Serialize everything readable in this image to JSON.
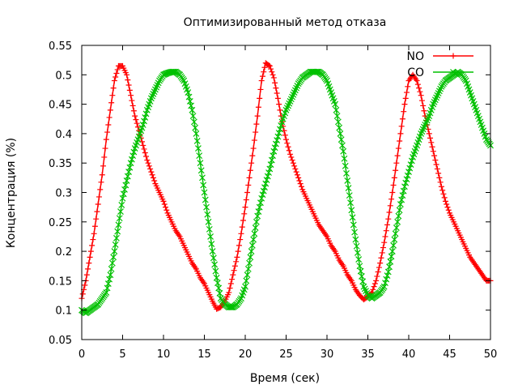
{
  "chart_data": {
    "type": "line",
    "title": "Оптимизированный метод отказа",
    "xlabel": "Время (сек)",
    "ylabel": "Концентрация (%)",
    "xlim": [
      0,
      50
    ],
    "ylim": [
      0.05,
      0.55
    ],
    "x_ticks": [
      0,
      5,
      10,
      15,
      20,
      25,
      30,
      35,
      40,
      45,
      50
    ],
    "y_ticks": [
      0.05,
      0.1,
      0.15,
      0.2,
      0.25,
      0.3,
      0.35,
      0.4,
      0.45,
      0.5,
      0.55
    ],
    "x_tick_labels": [
      "0",
      "5",
      "10",
      "15",
      "20",
      "25",
      "30",
      "35",
      "40",
      "45",
      "50"
    ],
    "y_tick_labels": [
      "0.05",
      "0.1",
      "0.15",
      "0.2",
      "0.25",
      "0.3",
      "0.35",
      "0.4",
      "0.45",
      "0.5",
      "0.55"
    ],
    "grid": false,
    "legend_position": "top-right",
    "series": [
      {
        "name": "NO",
        "color": "#ff0000",
        "marker": "plus",
        "x": [
          0,
          0.5,
          1,
          1.5,
          2,
          2.5,
          3,
          3.5,
          4,
          4.5,
          5,
          5.5,
          6,
          6.5,
          7,
          7.5,
          8,
          8.5,
          9,
          9.5,
          10,
          10.5,
          11,
          11.5,
          12,
          12.5,
          13,
          13.5,
          14,
          14.5,
          15,
          15.5,
          16,
          16.5,
          17,
          17.5,
          18,
          18.5,
          19,
          19.5,
          20,
          20.5,
          21,
          21.5,
          22,
          22.5,
          23,
          23.5,
          24,
          24.5,
          25,
          25.5,
          26,
          26.5,
          27,
          27.5,
          28,
          28.5,
          29,
          29.5,
          30,
          30.5,
          31,
          31.5,
          32,
          32.5,
          33,
          33.5,
          34,
          34.5,
          35,
          35.5,
          36,
          36.5,
          37,
          37.5,
          38,
          38.5,
          39,
          39.5,
          40,
          40.5,
          41,
          41.5,
          42,
          42.5,
          43,
          43.5,
          44,
          44.5,
          45,
          45.5,
          46,
          46.5,
          47,
          47.5,
          48,
          48.5,
          49,
          49.5,
          50
        ],
        "values": [
          0.12,
          0.15,
          0.19,
          0.23,
          0.28,
          0.33,
          0.39,
          0.44,
          0.49,
          0.515,
          0.515,
          0.5,
          0.465,
          0.43,
          0.405,
          0.38,
          0.355,
          0.335,
          0.315,
          0.3,
          0.285,
          0.265,
          0.25,
          0.235,
          0.225,
          0.21,
          0.195,
          0.18,
          0.17,
          0.155,
          0.145,
          0.13,
          0.115,
          0.102,
          0.105,
          0.115,
          0.13,
          0.16,
          0.19,
          0.23,
          0.275,
          0.325,
          0.375,
          0.43,
          0.49,
          0.52,
          0.515,
          0.495,
          0.46,
          0.42,
          0.39,
          0.365,
          0.345,
          0.325,
          0.305,
          0.29,
          0.275,
          0.26,
          0.245,
          0.235,
          0.225,
          0.21,
          0.2,
          0.185,
          0.175,
          0.16,
          0.15,
          0.135,
          0.125,
          0.118,
          0.123,
          0.13,
          0.15,
          0.18,
          0.215,
          0.255,
          0.3,
          0.35,
          0.4,
          0.45,
          0.49,
          0.5,
          0.49,
          0.465,
          0.43,
          0.4,
          0.37,
          0.34,
          0.31,
          0.285,
          0.265,
          0.25,
          0.235,
          0.22,
          0.205,
          0.19,
          0.18,
          0.17,
          0.16,
          0.15,
          0.15
        ]
      },
      {
        "name": "CO",
        "color": "#00c000",
        "marker": "cross",
        "x": [
          0,
          0.5,
          1,
          1.5,
          2,
          2.5,
          3,
          3.5,
          4,
          4.5,
          5,
          5.5,
          6,
          6.5,
          7,
          7.5,
          8,
          8.5,
          9,
          9.5,
          10,
          10.5,
          11,
          11.5,
          12,
          12.5,
          13,
          13.5,
          14,
          14.5,
          15,
          15.5,
          16,
          16.5,
          17,
          17.5,
          18,
          18.5,
          19,
          19.5,
          20,
          20.5,
          21,
          21.5,
          22,
          22.5,
          23,
          23.5,
          24,
          24.5,
          25,
          25.5,
          26,
          26.5,
          27,
          27.5,
          28,
          28.5,
          29,
          29.5,
          30,
          30.5,
          31,
          31.5,
          32,
          32.5,
          33,
          33.5,
          34,
          34.5,
          35,
          35.5,
          36,
          36.5,
          37,
          37.5,
          38,
          38.5,
          39,
          39.5,
          40,
          40.5,
          41,
          41.5,
          42,
          42.5,
          43,
          43.5,
          44,
          44.5,
          45,
          45.5,
          46,
          46.5,
          47,
          47.5,
          48,
          48.5,
          49,
          49.5,
          50
        ],
        "values": [
          0.1,
          0.095,
          0.1,
          0.105,
          0.11,
          0.12,
          0.13,
          0.16,
          0.2,
          0.245,
          0.29,
          0.32,
          0.35,
          0.375,
          0.395,
          0.415,
          0.44,
          0.46,
          0.475,
          0.49,
          0.5,
          0.503,
          0.505,
          0.505,
          0.5,
          0.49,
          0.47,
          0.44,
          0.4,
          0.35,
          0.3,
          0.25,
          0.2,
          0.155,
          0.12,
          0.11,
          0.105,
          0.105,
          0.11,
          0.12,
          0.14,
          0.18,
          0.22,
          0.26,
          0.29,
          0.315,
          0.34,
          0.37,
          0.395,
          0.42,
          0.44,
          0.455,
          0.47,
          0.485,
          0.495,
          0.5,
          0.505,
          0.505,
          0.505,
          0.5,
          0.49,
          0.47,
          0.45,
          0.41,
          0.37,
          0.32,
          0.27,
          0.22,
          0.175,
          0.14,
          0.125,
          0.12,
          0.125,
          0.13,
          0.14,
          0.165,
          0.2,
          0.24,
          0.28,
          0.31,
          0.335,
          0.36,
          0.38,
          0.4,
          0.415,
          0.43,
          0.45,
          0.465,
          0.48,
          0.49,
          0.495,
          0.5,
          0.505,
          0.5,
          0.49,
          0.47,
          0.45,
          0.43,
          0.41,
          0.39,
          0.38
        ]
      }
    ]
  }
}
